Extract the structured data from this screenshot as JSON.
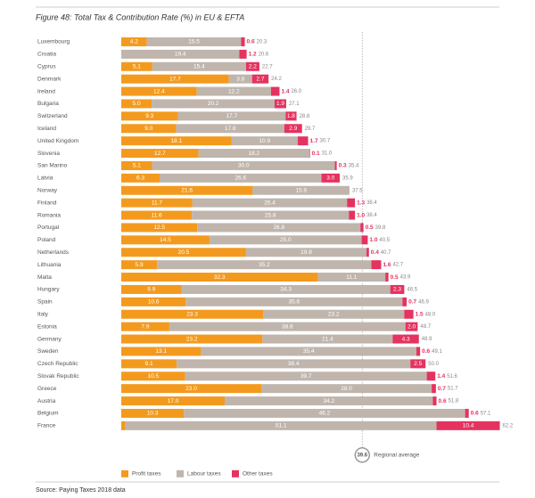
{
  "chart_data": {
    "type": "stacked-bar",
    "orientation": "horizontal",
    "title": "Figure 48: Total Tax & Contribution Rate (%) in EU & EFTA",
    "source": "Source: Paying Taxes 2018 data",
    "categories": [
      "Luxembourg",
      "Croatia",
      "Cyprus",
      "Denmark",
      "Ireland",
      "Bulgaria",
      "Switzerland",
      "Iceland",
      "United Kingdom",
      "Slovenia",
      "San Marino",
      "Latvia",
      "Norway",
      "Finland",
      "Romania",
      "Portugal",
      "Poland",
      "Netherlands",
      "Lithuania",
      "Malta",
      "Hungary",
      "Spain",
      "Italy",
      "Estonia",
      "Germany",
      "Sweden",
      "Czech Republic",
      "Slovak Republic",
      "Greece",
      "Austria",
      "Belgium",
      "France"
    ],
    "series": [
      {
        "name": "Profit taxes",
        "color": "#f39a1e",
        "values": [
          4.2,
          null,
          5.1,
          17.7,
          12.4,
          5.0,
          9.3,
          9.0,
          18.1,
          12.7,
          5.1,
          6.3,
          21.6,
          11.7,
          11.6,
          12.5,
          14.5,
          20.5,
          5.9,
          32.3,
          9.9,
          10.6,
          23.3,
          7.9,
          23.2,
          13.1,
          9.1,
          10.5,
          23.0,
          17.0,
          10.3,
          0.7
        ],
        "value_labels": [
          "4.2",
          null,
          "5.1",
          "17.7",
          "12.4",
          "5.0",
          "9.3",
          "9.0",
          "18.1",
          "12.7",
          "5.1",
          "6.3",
          "21.6",
          "11.7",
          "11.6",
          "12.5",
          "14.5",
          "20.5",
          "5.9",
          "32.3",
          "9.9",
          "10.6",
          "23.3",
          "7.9",
          "23.2",
          "13.1",
          "9.1",
          "10.5",
          "23.0",
          "17.0",
          "10.3",
          "0.7"
        ]
      },
      {
        "name": "Labour taxes",
        "color": "#bfb5ad",
        "values": [
          15.5,
          19.4,
          15.4,
          3.8,
          12.2,
          20.2,
          17.7,
          17.8,
          10.9,
          18.2,
          30.0,
          26.6,
          15.9,
          25.4,
          25.8,
          26.8,
          25.0,
          19.8,
          35.2,
          11.1,
          34.3,
          35.6,
          23.2,
          38.8,
          21.4,
          35.4,
          38.4,
          39.7,
          28.0,
          34.2,
          46.2,
          51.1
        ],
        "value_labels": [
          "15.5",
          "19.4",
          "15.4",
          "3.8",
          "12.2",
          "20.2",
          "17.7",
          "17.8",
          "10.9",
          "18.2",
          "30.0",
          "26.6",
          "15.9",
          "25.4",
          "25.8",
          "26.8",
          "25.0",
          "19.8",
          "35.2",
          "11.1",
          "34.3",
          "35.6",
          "23.2",
          "38.8",
          "21.4",
          "35.4",
          "38.4",
          "39.7",
          "28.0",
          "34.2",
          "46.2",
          "51.1"
        ]
      },
      {
        "name": "Other taxes",
        "color": "#e5325f",
        "values": [
          0.6,
          1.2,
          2.2,
          2.7,
          1.4,
          1.9,
          1.8,
          2.9,
          1.7,
          0.1,
          0.3,
          3.0,
          null,
          1.3,
          1.0,
          0.5,
          1.0,
          0.4,
          1.6,
          0.5,
          2.3,
          0.7,
          1.5,
          2.0,
          4.3,
          0.6,
          2.5,
          1.4,
          0.7,
          0.6,
          0.6,
          10.4
        ],
        "value_labels": [
          "0.6",
          "1.2",
          "2.2",
          "2.7",
          "1.4",
          "1.9",
          "1.8",
          "2.9",
          "1.7",
          "0.1",
          "0.3",
          "3.0",
          null,
          "1.3",
          "1.0",
          "0.5",
          "1.0",
          "0.4",
          "1.6",
          "0.5",
          "2.3",
          "0.7",
          "1.5",
          "2.0",
          "4.3",
          "0.6",
          "2.5",
          "1.4",
          "0.7",
          "0.6",
          "0.6",
          "10.4"
        ]
      }
    ],
    "totals": [
      "20.3",
      "20.6",
      "22.7",
      "24.2",
      "26.0",
      "27.1",
      "28.8",
      "29.7",
      "30.7",
      "31.0",
      "35.4",
      "35.9",
      "37.5",
      "38.4",
      "38.4",
      "39.8",
      "40.5",
      "40.7",
      "42.7",
      "43.9",
      "46.5",
      "46.9",
      "48.0",
      "48.7",
      "48.9",
      "49.1",
      "50.0",
      "51.6",
      "51.7",
      "51.8",
      "57.1",
      "62.2"
    ],
    "regional_average": {
      "value": 39.6,
      "label": "39.6",
      "text": "Regional average"
    },
    "xlim": [
      0,
      63
    ]
  }
}
